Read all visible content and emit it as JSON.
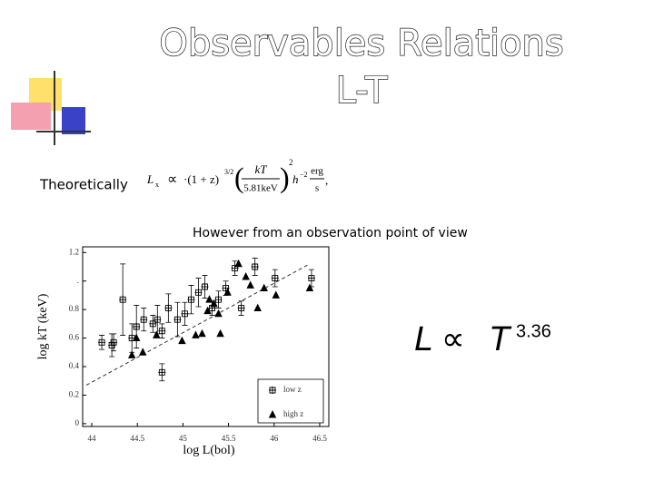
{
  "title": "Observables Relations",
  "subtitle": "L-T",
  "theory_label": "Theoretically",
  "formula": {
    "lhs": "L",
    "lhs_sub": "x",
    "prop": "∝",
    "factor": "·(1 + z)",
    "factor_exp": "3/2",
    "num": "kT",
    "den": "5.81keV",
    "power": "2",
    "h": "h",
    "h_exp": "−2",
    "unit_num": "erg",
    "unit_den": "s",
    "comma": ","
  },
  "observation_note": "However from an observation point of view",
  "relation": {
    "lhs": "L",
    "prop": "∝",
    "base": "T",
    "exponent": "3.36"
  },
  "chart_data": {
    "type": "scatter",
    "xlabel": "log  L(bol)",
    "ylabel": "log  kT  (keV)",
    "xlim": [
      43.9,
      46.6
    ],
    "ylim": [
      -0.02,
      1.24
    ],
    "xticks": [
      44,
      44.5,
      45,
      45.5,
      46,
      46.5
    ],
    "yticks": [
      0,
      0.2,
      0.4,
      0.6,
      0.8,
      {
        "value": 1,
        "label": "."
      },
      1.2
    ],
    "series": [
      {
        "name": "low  z",
        "color": "#000000",
        "marker": "cross",
        "x": [
          44.11,
          44.22,
          44.24,
          44.34,
          44.44,
          44.49,
          44.57,
          44.67,
          44.72,
          44.77,
          44.77,
          44.84,
          44.94,
          45.02,
          45.09,
          45.17,
          45.24,
          45.32,
          45.39,
          45.47,
          45.57,
          45.64,
          45.79,
          46.01,
          46.41
        ],
        "values": [
          0.57,
          0.55,
          0.57,
          0.87,
          0.6,
          0.68,
          0.73,
          0.7,
          0.73,
          0.65,
          0.36,
          0.81,
          0.73,
          0.77,
          0.87,
          0.92,
          0.96,
          0.81,
          0.87,
          0.95,
          1.09,
          0.81,
          1.1,
          1.02,
          1.02
        ],
        "yerr": [
          0.05,
          0.08,
          0.06,
          0.25,
          0.1,
          0.15,
          0.08,
          0.06,
          0.1,
          0.05,
          0.06,
          0.1,
          0.12,
          0.08,
          0.1,
          0.1,
          0.08,
          0.05,
          0.06,
          0.05,
          0.05,
          0.05,
          0.06,
          0.06,
          0.06
        ]
      },
      {
        "name": "high  z",
        "color": "#000000",
        "marker": "triangle",
        "x": [
          44.44,
          44.49,
          44.56,
          44.71,
          44.99,
          45.14,
          45.21,
          45.27,
          45.29,
          45.34,
          45.39,
          45.41,
          45.49,
          45.61,
          45.69,
          45.74,
          45.82,
          45.89,
          46.02,
          46.39
        ],
        "values": [
          0.48,
          0.6,
          0.5,
          0.62,
          0.58,
          0.62,
          0.63,
          0.79,
          0.87,
          0.84,
          0.77,
          0.63,
          0.92,
          1.12,
          1.03,
          0.97,
          0.81,
          0.95,
          0.9,
          0.95
        ]
      }
    ],
    "fit": {
      "x": [
        43.94,
        46.39
      ],
      "y": [
        0.27,
        1.12
      ]
    }
  }
}
